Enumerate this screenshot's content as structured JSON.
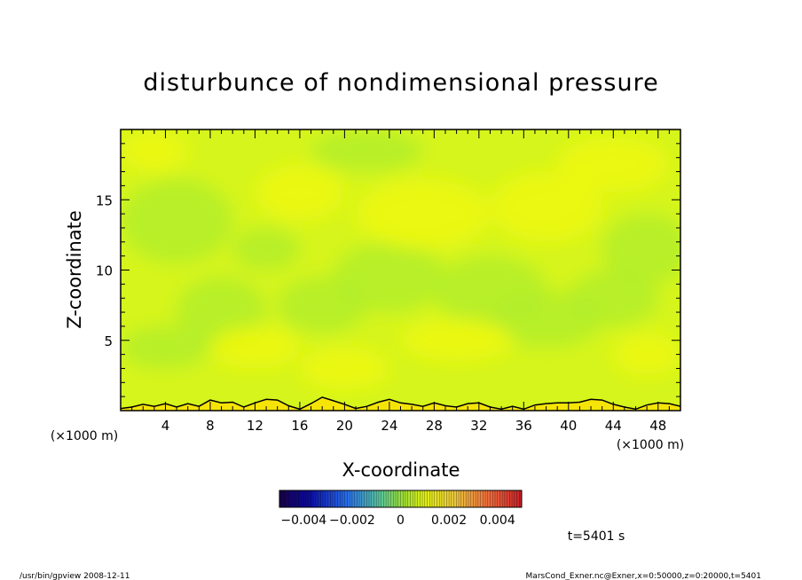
{
  "chart_data": {
    "type": "heatmap",
    "title": "disturbunce of nondimensional pressure",
    "xlabel": "X-coordinate",
    "ylabel": "Z-coordinate",
    "x_unit": "(×1000 m)",
    "y_unit": "(×1000 m)",
    "xlim": [
      0,
      50
    ],
    "ylim": [
      0,
      20
    ],
    "x_ticks": [
      4,
      8,
      12,
      16,
      20,
      24,
      28,
      32,
      36,
      40,
      44,
      48
    ],
    "y_ticks": [
      5,
      10,
      15
    ],
    "colorbar": {
      "min": -0.005,
      "max": 0.005,
      "ticks": [
        -0.004,
        -0.002,
        0,
        0.002,
        0.004
      ],
      "tick_labels": [
        "−0.004",
        "−0.002",
        "0",
        "0.002",
        "0.004"
      ]
    },
    "field_range_estimate": [
      0.0002,
      0.0009
    ],
    "colors": {
      "dominant": "#d6f51c",
      "low_patch": "#b3ee2a",
      "high_patch": "#eef80c",
      "surface_band": "#f6e406"
    },
    "contour_line": "near-surface zero contour (x in ×1000 m, z in ×1000 m)",
    "contour_points": [
      [
        0,
        0.15
      ],
      [
        1,
        0.25
      ],
      [
        2,
        0.45
      ],
      [
        3,
        0.3
      ],
      [
        4,
        0.5
      ],
      [
        5,
        0.25
      ],
      [
        6,
        0.5
      ],
      [
        7,
        0.3
      ],
      [
        8,
        0.75
      ],
      [
        9,
        0.55
      ],
      [
        10,
        0.6
      ],
      [
        11,
        0.25
      ],
      [
        12,
        0.55
      ],
      [
        13,
        0.8
      ],
      [
        14,
        0.75
      ],
      [
        15,
        0.35
      ],
      [
        16,
        0.1
      ],
      [
        17,
        0.5
      ],
      [
        18,
        0.95
      ],
      [
        19,
        0.7
      ],
      [
        20,
        0.45
      ],
      [
        21,
        0.15
      ],
      [
        22,
        0.3
      ],
      [
        23,
        0.6
      ],
      [
        24,
        0.8
      ],
      [
        25,
        0.55
      ],
      [
        26,
        0.45
      ],
      [
        27,
        0.3
      ],
      [
        28,
        0.55
      ],
      [
        29,
        0.35
      ],
      [
        30,
        0.25
      ],
      [
        31,
        0.5
      ],
      [
        32,
        0.55
      ],
      [
        33,
        0.25
      ],
      [
        34,
        0.1
      ],
      [
        35,
        0.3
      ],
      [
        36,
        0.1
      ],
      [
        37,
        0.4
      ],
      [
        38,
        0.5
      ],
      [
        39,
        0.55
      ],
      [
        40,
        0.55
      ],
      [
        41,
        0.6
      ],
      [
        42,
        0.8
      ],
      [
        43,
        0.75
      ],
      [
        44,
        0.45
      ],
      [
        45,
        0.25
      ],
      [
        46,
        0.1
      ],
      [
        47,
        0.4
      ],
      [
        48,
        0.55
      ],
      [
        49,
        0.5
      ],
      [
        50,
        0.3
      ]
    ]
  },
  "annotations": {
    "time": "t=5401 s",
    "footer_left": "/usr/bin/gpview   2008-12-11",
    "footer_right": "MarsCond_Exner.nc@Exner,x=0:50000,z=0:20000,t=5401"
  }
}
